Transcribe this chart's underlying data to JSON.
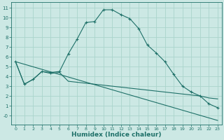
{
  "xlabel": "Humidex (Indice chaleur)",
  "background_color": "#cce8e4",
  "grid_color": "#aad4cc",
  "line_color": "#1e7068",
  "xlim": [
    -0.5,
    23.5
  ],
  "ylim": [
    -0.9,
    11.6
  ],
  "xticks": [
    0,
    1,
    2,
    3,
    4,
    5,
    6,
    7,
    8,
    9,
    10,
    11,
    12,
    13,
    14,
    15,
    16,
    17,
    18,
    19,
    20,
    21,
    22,
    23
  ],
  "yticks": [
    0,
    1,
    2,
    3,
    4,
    5,
    6,
    7,
    8,
    9,
    10,
    11
  ],
  "series_main": {
    "x": [
      0,
      1,
      2,
      3,
      4,
      5,
      6,
      7,
      8,
      9,
      10,
      11,
      12,
      13,
      14,
      15,
      16,
      17,
      18,
      19,
      20,
      21,
      22,
      23
    ],
    "y": [
      5.5,
      3.2,
      3.7,
      4.5,
      4.4,
      4.5,
      6.3,
      7.8,
      9.5,
      9.6,
      10.8,
      10.8,
      10.3,
      9.9,
      8.9,
      7.2,
      6.4,
      5.5,
      4.2,
      3.0,
      2.4,
      2.0,
      1.2,
      0.8
    ]
  },
  "series_flat": {
    "x": [
      0,
      1,
      2,
      3,
      4,
      5,
      6,
      7,
      8,
      9,
      10,
      11,
      12,
      13,
      14,
      15,
      16,
      17,
      18,
      19,
      20,
      21,
      22,
      23
    ],
    "y": [
      5.5,
      3.2,
      3.7,
      4.5,
      4.3,
      4.4,
      3.5,
      3.4,
      3.3,
      3.2,
      3.1,
      3.0,
      2.9,
      2.8,
      2.7,
      2.6,
      2.5,
      2.4,
      2.3,
      2.2,
      2.1,
      2.0,
      1.8,
      1.7
    ]
  },
  "series_diag": {
    "x": [
      0,
      23
    ],
    "y": [
      5.5,
      -0.5
    ]
  }
}
